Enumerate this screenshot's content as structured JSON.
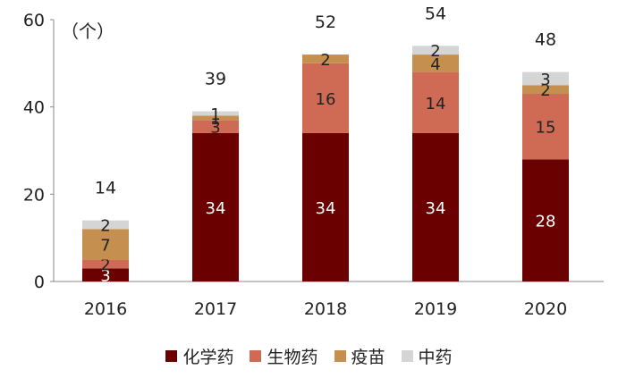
{
  "chart_data": {
    "type": "bar",
    "stacked": true,
    "unit_label": "（个）",
    "categories": [
      "2016",
      "2017",
      "2018",
      "2019",
      "2020"
    ],
    "series": [
      {
        "name": "化学药",
        "color": "#6b0000",
        "values": [
          3,
          34,
          34,
          34,
          28
        ]
      },
      {
        "name": "生物药",
        "color": "#cf6a55",
        "values": [
          2,
          3,
          16,
          14,
          15
        ]
      },
      {
        "name": "疫苗",
        "color": "#c58f4f",
        "values": [
          7,
          1,
          2,
          4,
          2
        ]
      },
      {
        "name": "中药",
        "color": "#d5d5d5",
        "values": [
          2,
          1,
          0,
          2,
          3
        ]
      }
    ],
    "totals": [
      "14",
      "39",
      "52",
      "54",
      "48"
    ],
    "ylim": [
      0,
      60
    ],
    "yticks": [
      0,
      20,
      40,
      60
    ],
    "grid": false,
    "legend_position": "bottom"
  }
}
